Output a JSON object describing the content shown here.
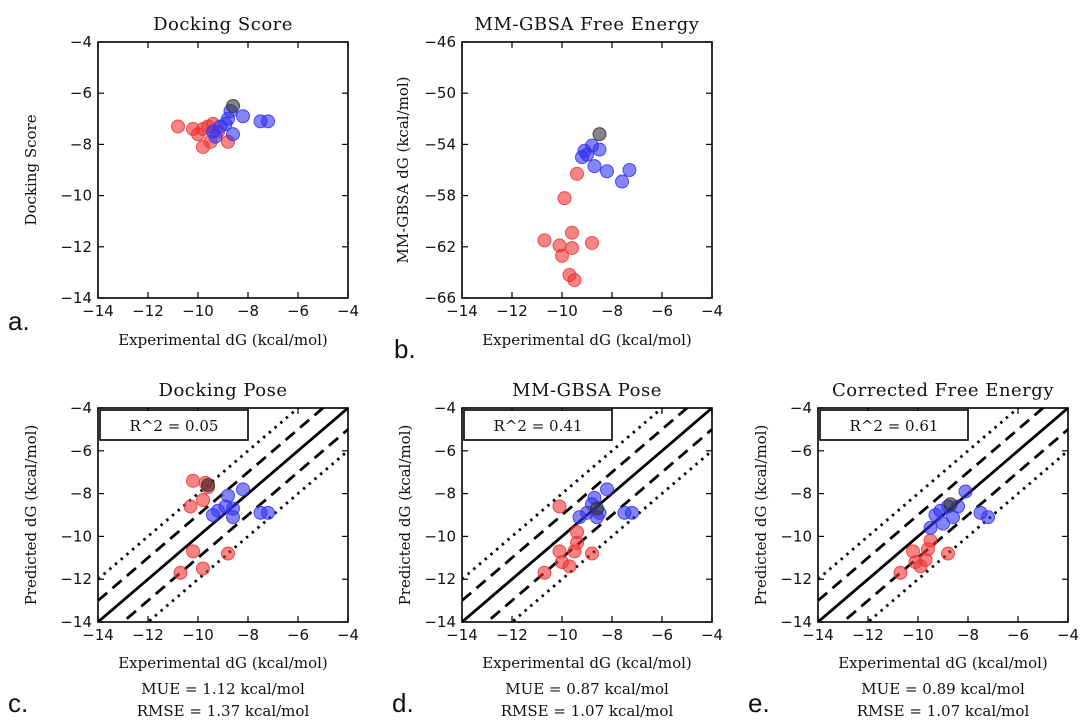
{
  "colors": {
    "red": "#ee3333",
    "blue": "#3333ee",
    "gray": "#333333"
  },
  "chart_data": [
    {
      "id": "a",
      "type": "scatter",
      "title": "Docking Score",
      "xlabel": "Experimental dG (kcal/mol)",
      "ylabel": "Docking Score",
      "panel_label": "a.",
      "xlim": [
        -14,
        -4
      ],
      "ylim": [
        -14,
        -4
      ],
      "xticks": [
        "−14",
        "−12",
        "−10",
        "−8",
        "−6",
        "−4"
      ],
      "yticks": [
        "−14",
        "−12",
        "−10",
        "−8",
        "−6",
        "−4"
      ],
      "xtick_values": [
        -14,
        -12,
        -10,
        -8,
        -6,
        -4
      ],
      "ytick_values": [
        -14,
        -12,
        -10,
        -8,
        -6,
        -4
      ],
      "series": [
        {
          "color": "red",
          "points": [
            [
              -10.8,
              -7.3
            ],
            [
              -10.2,
              -7.4
            ],
            [
              -10.0,
              -7.6
            ],
            [
              -9.8,
              -7.4
            ],
            [
              -9.6,
              -7.3
            ],
            [
              -9.4,
              -7.2
            ],
            [
              -9.2,
              -7.5
            ],
            [
              -9.8,
              -8.1
            ],
            [
              -9.5,
              -7.9
            ],
            [
              -8.8,
              -7.9
            ]
          ]
        },
        {
          "color": "blue",
          "points": [
            [
              -9.4,
              -7.5
            ],
            [
              -9.1,
              -7.3
            ],
            [
              -9.3,
              -7.7
            ],
            [
              -8.9,
              -7.2
            ],
            [
              -8.6,
              -7.6
            ],
            [
              -8.8,
              -7.0
            ],
            [
              -8.7,
              -6.7
            ],
            [
              -8.2,
              -6.9
            ],
            [
              -7.5,
              -7.1
            ],
            [
              -7.2,
              -7.1
            ]
          ]
        },
        {
          "color": "gray",
          "points": [
            [
              -8.6,
              -6.5
            ]
          ]
        }
      ]
    },
    {
      "id": "b",
      "type": "scatter",
      "title": "MM-GBSA Free Energy",
      "xlabel": "Experimental dG (kcal/mol)",
      "ylabel": "MM-GBSA dG (kcal/mol)",
      "panel_label": "b.",
      "xlim": [
        -14,
        -4
      ],
      "ylim": [
        -66,
        -46
      ],
      "xticks": [
        "−14",
        "−12",
        "−10",
        "−8",
        "−6",
        "−4"
      ],
      "yticks": [
        "−66",
        "−62",
        "−58",
        "−54",
        "−50",
        "−46"
      ],
      "xtick_values": [
        -14,
        -12,
        -10,
        -8,
        -6,
        -4
      ],
      "ytick_values": [
        -66,
        -62,
        -58,
        -54,
        -50,
        -46
      ],
      "series": [
        {
          "color": "red",
          "points": [
            [
              -10.7,
              -61.5
            ],
            [
              -10.1,
              -61.9
            ],
            [
              -10.0,
              -62.7
            ],
            [
              -9.6,
              -62.1
            ],
            [
              -9.6,
              -60.9
            ],
            [
              -9.9,
              -58.2
            ],
            [
              -9.7,
              -64.2
            ],
            [
              -9.5,
              -64.6
            ],
            [
              -9.4,
              -56.3
            ],
            [
              -8.8,
              -61.7
            ]
          ]
        },
        {
          "color": "blue",
          "points": [
            [
              -9.2,
              -55.0
            ],
            [
              -9.0,
              -54.8
            ],
            [
              -8.8,
              -54.1
            ],
            [
              -8.5,
              -54.4
            ],
            [
              -8.7,
              -55.7
            ],
            [
              -8.2,
              -56.1
            ],
            [
              -7.6,
              -56.9
            ],
            [
              -7.3,
              -56.0
            ],
            [
              -9.1,
              -54.5
            ]
          ]
        },
        {
          "color": "gray",
          "points": [
            [
              -8.5,
              -53.2
            ]
          ]
        }
      ]
    },
    {
      "id": "c",
      "type": "scatter",
      "title": "Docking Pose",
      "xlabel": "Experimental dG (kcal/mol)",
      "ylabel": "Predicted dG (kcal/mol)",
      "panel_label": "c.",
      "r2": "R^2 = 0.05",
      "mue": "MUE = 1.12 kcal/mol",
      "rmse": "RMSE = 1.37 kcal/mol",
      "xlim": [
        -14,
        -4
      ],
      "ylim": [
        -14,
        -4
      ],
      "xticks": [
        "−14",
        "−12",
        "−10",
        "−8",
        "−6",
        "−4"
      ],
      "yticks": [
        "−14",
        "−12",
        "−10",
        "−8",
        "−6",
        "−4"
      ],
      "xtick_values": [
        -14,
        -12,
        -10,
        -8,
        -6,
        -4
      ],
      "ytick_values": [
        -14,
        -12,
        -10,
        -8,
        -6,
        -4
      ],
      "reference_lines": [
        {
          "offset": 0,
          "style": "solid"
        },
        {
          "offset": 1,
          "style": "dashed"
        },
        {
          "offset": -1,
          "style": "dashed"
        },
        {
          "offset": 2,
          "style": "dotted"
        },
        {
          "offset": -2,
          "style": "dotted"
        }
      ],
      "series": [
        {
          "color": "red",
          "points": [
            [
              -10.2,
              -7.4
            ],
            [
              -9.7,
              -7.5
            ],
            [
              -9.6,
              -7.7
            ],
            [
              -9.8,
              -8.3
            ],
            [
              -10.3,
              -8.6
            ],
            [
              -10.2,
              -10.7
            ],
            [
              -9.8,
              -11.5
            ],
            [
              -10.7,
              -11.7
            ],
            [
              -8.8,
              -10.8
            ]
          ]
        },
        {
          "color": "blue",
          "points": [
            [
              -9.4,
              -9.0
            ],
            [
              -9.2,
              -8.8
            ],
            [
              -8.9,
              -8.6
            ],
            [
              -8.8,
              -8.1
            ],
            [
              -8.6,
              -8.7
            ],
            [
              -8.2,
              -7.8
            ],
            [
              -8.6,
              -9.1
            ],
            [
              -7.5,
              -8.9
            ],
            [
              -7.2,
              -8.9
            ]
          ]
        },
        {
          "color": "gray",
          "points": [
            [
              -9.6,
              -7.6
            ]
          ]
        }
      ]
    },
    {
      "id": "d",
      "type": "scatter",
      "title": "MM-GBSA Pose",
      "xlabel": "Experimental dG (kcal/mol)",
      "ylabel": "Predicted dG (kcal/mol)",
      "panel_label": "d.",
      "r2": "R^2 = 0.41",
      "mue": "MUE = 0.87 kcal/mol",
      "rmse": "RMSE = 1.07 kcal/mol",
      "xlim": [
        -14,
        -4
      ],
      "ylim": [
        -14,
        -4
      ],
      "xticks": [
        "−14",
        "−12",
        "−10",
        "−8",
        "−6",
        "−4"
      ],
      "yticks": [
        "−14",
        "−12",
        "−10",
        "−8",
        "−6",
        "−4"
      ],
      "xtick_values": [
        -14,
        -12,
        -10,
        -8,
        -6,
        -4
      ],
      "ytick_values": [
        -14,
        -12,
        -10,
        -8,
        -6,
        -4
      ],
      "reference_lines": [
        {
          "offset": 0,
          "style": "solid"
        },
        {
          "offset": 1,
          "style": "dashed"
        },
        {
          "offset": -1,
          "style": "dashed"
        },
        {
          "offset": 2,
          "style": "dotted"
        },
        {
          "offset": -2,
          "style": "dotted"
        }
      ],
      "series": [
        {
          "color": "red",
          "points": [
            [
              -10.1,
              -8.6
            ],
            [
              -10.1,
              -10.7
            ],
            [
              -10.0,
              -11.2
            ],
            [
              -9.7,
              -11.4
            ],
            [
              -9.5,
              -10.7
            ],
            [
              -9.4,
              -10.3
            ],
            [
              -9.4,
              -9.8
            ],
            [
              -10.7,
              -11.7
            ],
            [
              -8.8,
              -10.8
            ]
          ]
        },
        {
          "color": "blue",
          "points": [
            [
              -9.3,
              -9.1
            ],
            [
              -9.0,
              -8.9
            ],
            [
              -8.8,
              -8.5
            ],
            [
              -8.7,
              -8.2
            ],
            [
              -8.5,
              -8.9
            ],
            [
              -8.2,
              -7.8
            ],
            [
              -8.6,
              -9.1
            ],
            [
              -7.5,
              -8.9
            ],
            [
              -7.2,
              -8.9
            ]
          ]
        },
        {
          "color": "gray",
          "points": [
            [
              -8.6,
              -8.7
            ]
          ]
        }
      ]
    },
    {
      "id": "e",
      "type": "scatter",
      "title": "Corrected Free Energy",
      "xlabel": "Experimental dG (kcal/mol)",
      "ylabel": "Predicted dG (kcal/mol)",
      "panel_label": "e.",
      "r2": "R^2 = 0.61",
      "mue": "MUE = 0.89 kcal/mol",
      "rmse": "RMSE = 1.07 kcal/mol",
      "xlim": [
        -14,
        -4
      ],
      "ylim": [
        -14,
        -4
      ],
      "xticks": [
        "−14",
        "−12",
        "−10",
        "−8",
        "−6",
        "−4"
      ],
      "yticks": [
        "−14",
        "−12",
        "−10",
        "−8",
        "−6",
        "−4"
      ],
      "xtick_values": [
        -14,
        -12,
        -10,
        -8,
        -6,
        -4
      ],
      "ytick_values": [
        -14,
        -12,
        -10,
        -8,
        -6,
        -4
      ],
      "reference_lines": [
        {
          "offset": 0,
          "style": "solid"
        },
        {
          "offset": 1,
          "style": "dashed"
        },
        {
          "offset": -1,
          "style": "dashed"
        },
        {
          "offset": 2,
          "style": "dotted"
        },
        {
          "offset": -2,
          "style": "dotted"
        }
      ],
      "series": [
        {
          "color": "red",
          "points": [
            [
              -10.2,
              -10.7
            ],
            [
              -10.1,
              -11.2
            ],
            [
              -9.9,
              -11.4
            ],
            [
              -9.7,
              -11.1
            ],
            [
              -9.6,
              -10.6
            ],
            [
              -9.5,
              -10.2
            ],
            [
              -10.7,
              -11.7
            ],
            [
              -8.8,
              -10.8
            ]
          ]
        },
        {
          "color": "blue",
          "points": [
            [
              -9.5,
              -9.6
            ],
            [
              -9.3,
              -9.0
            ],
            [
              -9.1,
              -8.8
            ],
            [
              -9.0,
              -9.4
            ],
            [
              -8.8,
              -8.6
            ],
            [
              -8.6,
              -9.1
            ],
            [
              -8.4,
              -8.6
            ],
            [
              -8.1,
              -7.9
            ],
            [
              -7.5,
              -8.9
            ],
            [
              -7.2,
              -9.1
            ]
          ]
        },
        {
          "color": "gray",
          "points": [
            [
              -8.7,
              -8.5
            ]
          ]
        }
      ]
    }
  ]
}
